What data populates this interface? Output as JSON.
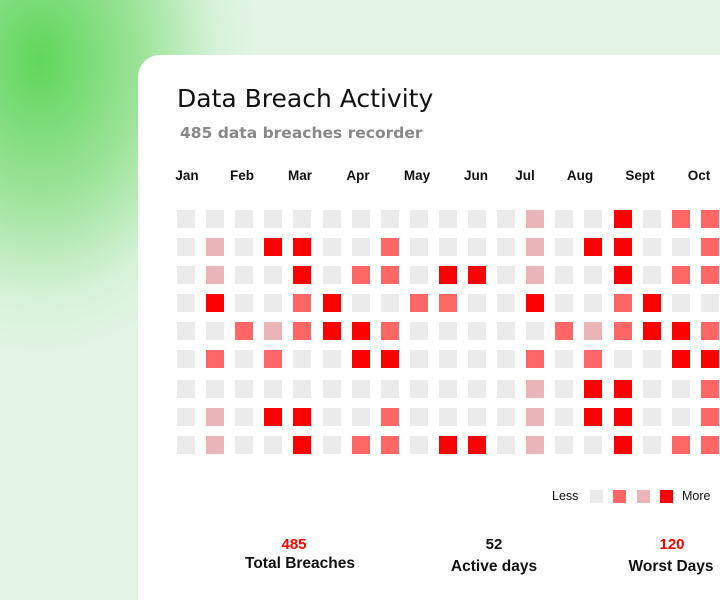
{
  "chart_data": {
    "type": "heatmap",
    "title": "Data Breach Activity",
    "subtitle": "485 data breaches recorder",
    "months": [
      "Jan",
      "Feb",
      "Mar",
      "Apr",
      "May",
      "Jun",
      "Jul",
      "Aug",
      "Sept",
      "Oct"
    ],
    "levels": [
      [
        0,
        0,
        0,
        0,
        0,
        0,
        0,
        0,
        0,
        0,
        0,
        0,
        1,
        0,
        0,
        3,
        0,
        2,
        2
      ],
      [
        0,
        1,
        0,
        3,
        3,
        0,
        0,
        2,
        0,
        0,
        0,
        0,
        1,
        0,
        3,
        3,
        0,
        0,
        2
      ],
      [
        0,
        1,
        0,
        0,
        3,
        0,
        2,
        2,
        0,
        3,
        3,
        0,
        1,
        0,
        0,
        3,
        0,
        2,
        2
      ],
      [
        0,
        3,
        0,
        0,
        2,
        3,
        0,
        0,
        2,
        2,
        0,
        0,
        3,
        0,
        0,
        2,
        3,
        0,
        0
      ],
      [
        0,
        0,
        2,
        1,
        2,
        3,
        3,
        2,
        0,
        0,
        0,
        0,
        0,
        2,
        1,
        2,
        3,
        3,
        2
      ],
      [
        0,
        2,
        0,
        2,
        0,
        0,
        3,
        3,
        0,
        0,
        0,
        0,
        2,
        0,
        2,
        0,
        0,
        3,
        3
      ],
      [
        0,
        0,
        0,
        0,
        0,
        0,
        0,
        0,
        0,
        0,
        0,
        0,
        1,
        0,
        3,
        3,
        0,
        0,
        2
      ],
      [
        0,
        1,
        0,
        3,
        3,
        0,
        0,
        2,
        0,
        0,
        0,
        0,
        1,
        0,
        3,
        3,
        0,
        0,
        2
      ],
      [
        0,
        1,
        0,
        0,
        3,
        0,
        2,
        2,
        0,
        3,
        3,
        0,
        1,
        0,
        0,
        3,
        0,
        2,
        2
      ]
    ],
    "level_colors": [
      "#ebebeb",
      "#ebb5b8",
      "#ff6666",
      "#ff0000"
    ],
    "legend": {
      "less": "Less",
      "more": "More",
      "order": [
        0,
        2,
        1,
        3
      ]
    }
  },
  "stats": [
    {
      "value": "485",
      "label": "Total Breaches",
      "color": "#ff0000"
    },
    {
      "value": "52",
      "label": "Active days",
      "color": "#111111"
    },
    {
      "value": "120",
      "label": "Worst Days",
      "color": "#ff0000"
    }
  ]
}
